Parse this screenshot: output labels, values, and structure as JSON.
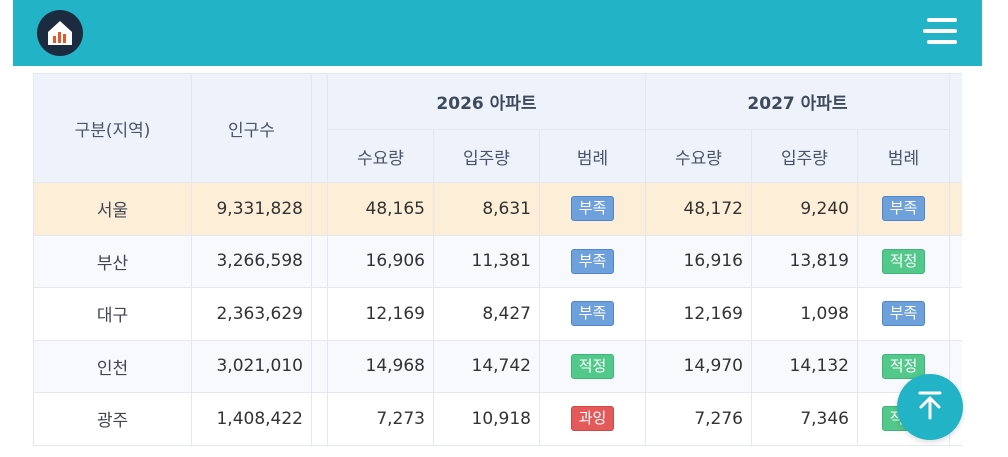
{
  "header": {
    "logo_icon": "house-chart-icon",
    "menu_icon": "hamburger-menu-icon"
  },
  "table": {
    "col_region": "구분(지역)",
    "col_population": "인구수",
    "group_2026": "2026 아파트",
    "group_2027": "2027 아파트",
    "sub_demand": "수요량",
    "sub_supply": "입주량",
    "sub_legend": "범례",
    "rows": [
      {
        "region": "서울",
        "population": "9,331,828",
        "d26": "48,165",
        "s26": "8,631",
        "l26": "부족",
        "c26": "blue",
        "d27": "48,172",
        "s27": "9,240",
        "l27": "부족",
        "c27": "blue"
      },
      {
        "region": "부산",
        "population": "3,266,598",
        "d26": "16,906",
        "s26": "11,381",
        "l26": "부족",
        "c26": "blue",
        "d27": "16,916",
        "s27": "13,819",
        "l27": "적정",
        "c27": "green"
      },
      {
        "region": "대구",
        "population": "2,363,629",
        "d26": "12,169",
        "s26": "8,427",
        "l26": "부족",
        "c26": "blue",
        "d27": "12,169",
        "s27": "1,098",
        "l27": "부족",
        "c27": "blue"
      },
      {
        "region": "인천",
        "population": "3,021,010",
        "d26": "14,968",
        "s26": "14,742",
        "l26": "적정",
        "c26": "green",
        "d27": "14,970",
        "s27": "14,132",
        "l27": "적정",
        "c27": "green"
      },
      {
        "region": "광주",
        "population": "1,408,422",
        "d26": "7,273",
        "s26": "10,918",
        "l26": "과잉",
        "c26": "red",
        "d27": "7,276",
        "s27": "7,346",
        "l27": "적정",
        "c27": "green"
      }
    ]
  },
  "scroll_top_icon": "arrow-up-to-top-icon",
  "colors": {
    "brand": "#22b3c6",
    "shortage": "#6ea0db",
    "adequate": "#52c98a",
    "excess": "#e45a5a",
    "highlight_row": "#fdefd7"
  }
}
